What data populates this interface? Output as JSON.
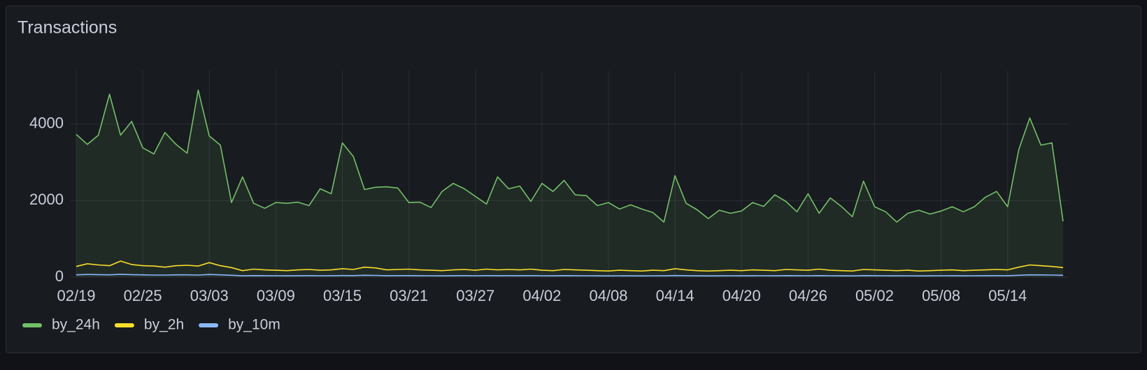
{
  "chart_data": {
    "type": "line",
    "title": "Transactions",
    "x": [
      "02/19",
      "02/20",
      "02/21",
      "02/22",
      "02/23",
      "02/24",
      "02/25",
      "02/26",
      "02/27",
      "02/28",
      "03/01",
      "03/02",
      "03/03",
      "03/04",
      "03/05",
      "03/06",
      "03/07",
      "03/08",
      "03/09",
      "03/10",
      "03/11",
      "03/12",
      "03/13",
      "03/14",
      "03/15",
      "03/16",
      "03/17",
      "03/18",
      "03/19",
      "03/20",
      "03/21",
      "03/22",
      "03/23",
      "03/24",
      "03/25",
      "03/26",
      "03/27",
      "03/28",
      "03/29",
      "03/30",
      "03/31",
      "04/01",
      "04/02",
      "04/03",
      "04/04",
      "04/05",
      "04/06",
      "04/07",
      "04/08",
      "04/09",
      "04/10",
      "04/11",
      "04/12",
      "04/13",
      "04/14",
      "04/15",
      "04/16",
      "04/17",
      "04/18",
      "04/19",
      "04/20",
      "04/21",
      "04/22",
      "04/23",
      "04/24",
      "04/25",
      "04/26",
      "04/27",
      "04/28",
      "04/29",
      "04/30",
      "05/01",
      "05/02",
      "05/03",
      "05/04",
      "05/05",
      "05/06",
      "05/07",
      "05/08",
      "05/09",
      "05/10",
      "05/11",
      "05/12",
      "05/13",
      "05/14",
      "05/15",
      "05/16",
      "05/17",
      "05/18",
      "05/19"
    ],
    "xticks": [
      "02/19",
      "02/25",
      "03/03",
      "03/09",
      "03/15",
      "03/21",
      "03/27",
      "04/02",
      "04/08",
      "04/14",
      "04/20",
      "04/26",
      "05/02",
      "05/08",
      "05/14"
    ],
    "ylim": [
      0,
      5400
    ],
    "yticks": [
      0,
      2000,
      4000
    ],
    "grid": true,
    "legend": "bottom-left",
    "series": [
      {
        "name": "by_24h",
        "color": "#73bf69",
        "fill": true,
        "values": [
          3730,
          3470,
          3710,
          4780,
          3710,
          4070,
          3380,
          3220,
          3780,
          3470,
          3240,
          4890,
          3690,
          3450,
          1950,
          2620,
          1930,
          1800,
          1950,
          1930,
          1960,
          1870,
          2310,
          2180,
          3510,
          3150,
          2290,
          2350,
          2360,
          2330,
          1950,
          1960,
          1820,
          2240,
          2450,
          2310,
          2110,
          1910,
          2620,
          2310,
          2380,
          1980,
          2450,
          2240,
          2530,
          2150,
          2130,
          1870,
          1950,
          1780,
          1890,
          1780,
          1690,
          1440,
          2650,
          1930,
          1760,
          1530,
          1750,
          1670,
          1730,
          1950,
          1850,
          2150,
          1980,
          1710,
          2180,
          1670,
          2070,
          1850,
          1580,
          2510,
          1840,
          1710,
          1440,
          1670,
          1750,
          1650,
          1730,
          1840,
          1710,
          1840,
          2090,
          2240,
          1840,
          3330,
          4160,
          3450,
          3510,
          1460
        ]
      },
      {
        "name": "by_2h",
        "color": "#fade2a",
        "fill": false,
        "values": [
          280,
          350,
          320,
          300,
          420,
          330,
          300,
          290,
          260,
          300,
          310,
          290,
          380,
          300,
          250,
          170,
          210,
          190,
          180,
          170,
          190,
          200,
          180,
          190,
          220,
          200,
          260,
          240,
          190,
          200,
          210,
          190,
          180,
          170,
          190,
          200,
          180,
          210,
          190,
          200,
          190,
          210,
          180,
          170,
          200,
          190,
          180,
          170,
          160,
          180,
          170,
          160,
          180,
          170,
          220,
          190,
          170,
          160,
          170,
          180,
          170,
          190,
          180,
          170,
          200,
          190,
          180,
          210,
          180,
          170,
          160,
          200,
          190,
          180,
          170,
          180,
          160,
          170,
          180,
          190,
          170,
          180,
          190,
          200,
          190,
          260,
          320,
          300,
          280,
          250
        ]
      },
      {
        "name": "by_10m",
        "color": "#8ab8ff",
        "fill": false,
        "values": [
          60,
          70,
          65,
          60,
          75,
          65,
          60,
          55,
          55,
          60,
          60,
          55,
          70,
          60,
          50,
          35,
          40,
          38,
          36,
          35,
          38,
          40,
          36,
          38,
          42,
          40,
          50,
          45,
          38,
          40,
          40,
          38,
          36,
          35,
          38,
          40,
          36,
          40,
          38,
          40,
          38,
          40,
          36,
          35,
          40,
          38,
          36,
          35,
          32,
          36,
          35,
          32,
          36,
          35,
          42,
          38,
          35,
          32,
          35,
          36,
          35,
          38,
          36,
          35,
          40,
          38,
          36,
          40,
          36,
          35,
          32,
          40,
          38,
          36,
          35,
          36,
          32,
          35,
          36,
          38,
          35,
          36,
          38,
          40,
          38,
          50,
          60,
          58,
          55,
          50
        ]
      }
    ]
  }
}
